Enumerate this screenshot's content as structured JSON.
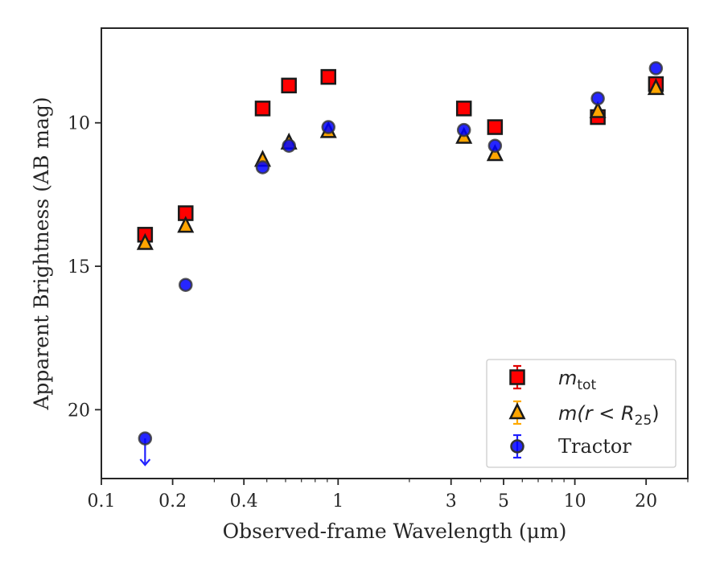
{
  "chart_data": {
    "type": "scatter",
    "xlabel": "Observed-frame Wavelength (μm)",
    "ylabel": "Apparent Brightness (AB mag)",
    "xscale": "log",
    "xlim": [
      0.1,
      30
    ],
    "ylim": [
      22.4,
      6.7
    ],
    "y_inverted": true,
    "x_ticks": [
      {
        "value": 0.1,
        "label": "0.1"
      },
      {
        "value": 0.2,
        "label": "0.2"
      },
      {
        "value": 0.4,
        "label": "0.4"
      },
      {
        "value": 1,
        "label": "1"
      },
      {
        "value": 3,
        "label": "3"
      },
      {
        "value": 5,
        "label": "5"
      },
      {
        "value": 10,
        "label": "10"
      },
      {
        "value": 20,
        "label": "20"
      }
    ],
    "y_ticks": [
      {
        "value": 10,
        "label": "10"
      },
      {
        "value": 15,
        "label": "15"
      },
      {
        "value": 20,
        "label": "20"
      }
    ],
    "legend_position": "lower-right",
    "series": [
      {
        "name": "m_tot",
        "legend_main": "m",
        "legend_sub": "tot",
        "marker": "square",
        "color": "#ff0000",
        "x": [
          0.153,
          0.227,
          0.48,
          0.62,
          0.91,
          3.4,
          4.6,
          12.5,
          22.0
        ],
        "y": [
          13.9,
          13.15,
          9.5,
          8.7,
          8.4,
          9.5,
          10.15,
          9.8,
          8.65
        ]
      },
      {
        "name": "m(r < R25)",
        "legend_main": "m(r < R",
        "legend_sub": "25",
        "legend_tail": ")",
        "marker": "triangle",
        "color": "#ffa500",
        "x": [
          0.153,
          0.227,
          0.48,
          0.62,
          0.91,
          3.4,
          4.6,
          12.5,
          22.0
        ],
        "y": [
          14.2,
          13.6,
          11.3,
          10.7,
          10.3,
          10.5,
          11.1,
          9.6,
          8.8
        ]
      },
      {
        "name": "Tractor",
        "marker": "circle",
        "color": "#0000ff",
        "x": [
          0.153,
          0.227,
          0.48,
          0.62,
          0.91,
          3.4,
          4.6,
          12.5,
          22.0
        ],
        "y": [
          21.0,
          15.65,
          11.55,
          10.8,
          10.15,
          10.25,
          10.8,
          9.15,
          8.1
        ],
        "upper_limits": [
          true,
          false,
          false,
          false,
          false,
          false,
          false,
          false,
          false
        ]
      }
    ]
  }
}
